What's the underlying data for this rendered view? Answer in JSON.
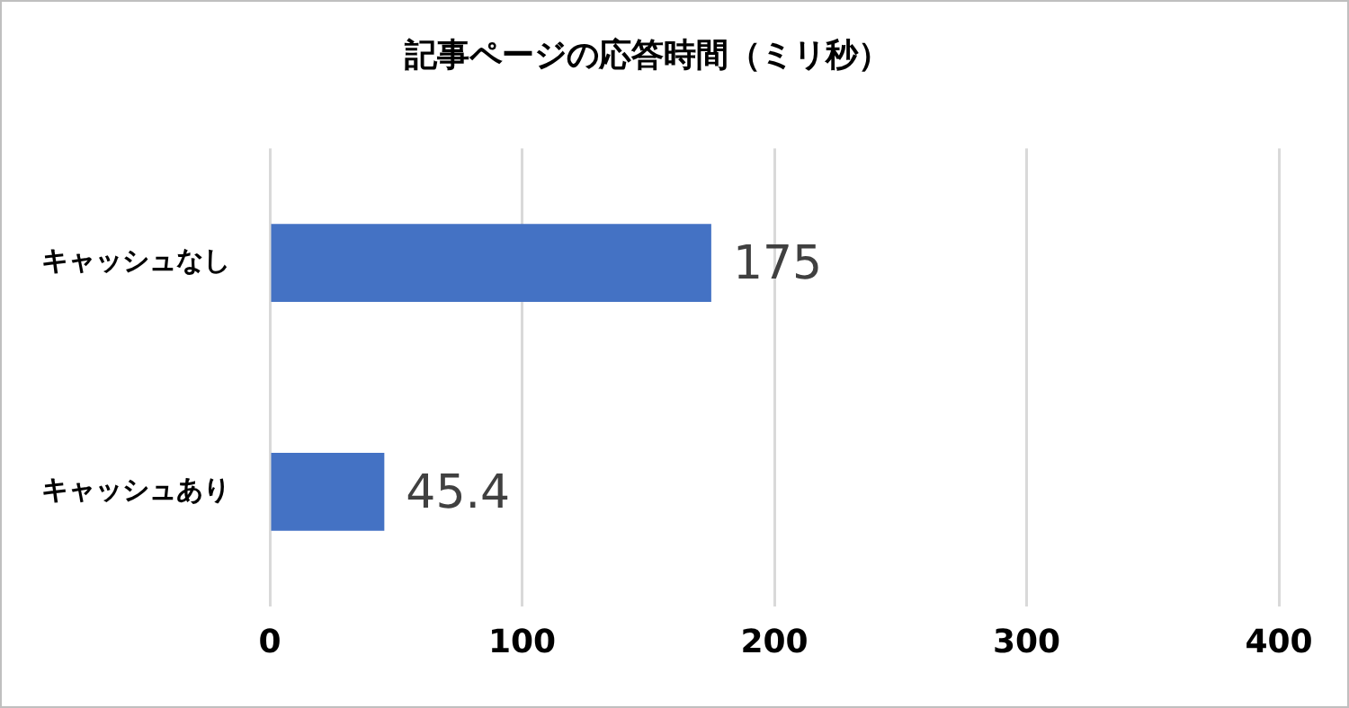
{
  "chart_data": {
    "type": "bar",
    "orientation": "horizontal",
    "title": "記事ページの応答時間（ミリ秒）",
    "categories": [
      "キャッシュなし",
      "キャッシュあり"
    ],
    "values": [
      175,
      45.4
    ],
    "color": "#4472c4",
    "xlim": [
      0,
      400
    ],
    "xticks": [
      0,
      100,
      200,
      300,
      400
    ],
    "grid": "x",
    "data_labels": true,
    "legend": false
  }
}
